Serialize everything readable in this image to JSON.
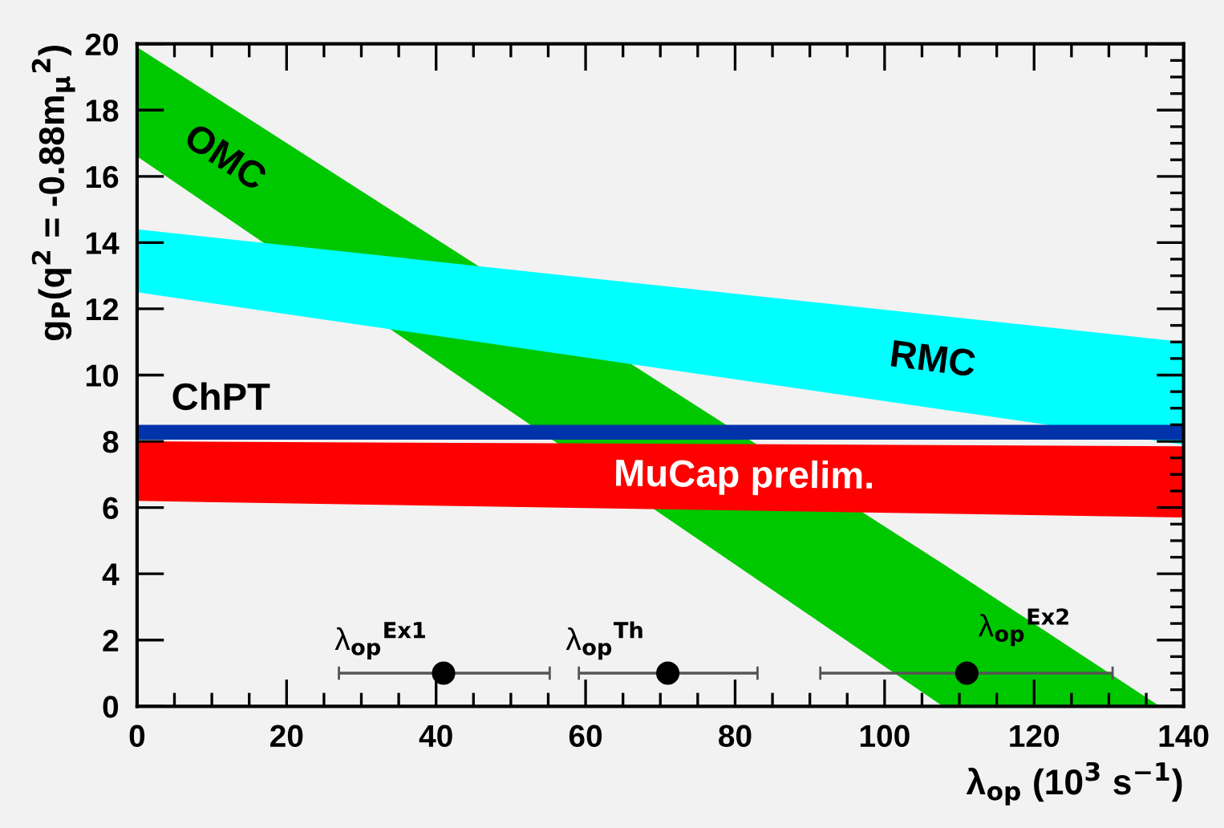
{
  "chart_data": {
    "type": "area",
    "xlabel": "λ$_{op}$ (10$^{3}$ s$^{−1}$)",
    "ylabel": "g$_{P}$(q$^{2}$ = -0.88m$_{μ}$$^{2}$)",
    "xlim": [
      0,
      140
    ],
    "xticks": [
      0,
      20,
      40,
      60,
      80,
      100,
      120,
      140
    ],
    "ylim": [
      0,
      20
    ],
    "yticks": [
      0,
      2,
      4,
      6,
      8,
      10,
      12,
      14,
      16,
      18,
      20
    ],
    "grid": false,
    "legend": false,
    "series": [
      {
        "type": "area",
        "color": "#00c800",
        "x": [
          0,
          107.8,
          136.8
        ],
        "values": [
          null,
          null,
          null
        ],
        "lower": [
          16.6,
          0,
          0
        ],
        "upper": [
          19.9,
          4.3,
          0
        ]
      },
      {
        "type": "area",
        "color": "#00ffff",
        "x": [
          0,
          140
        ],
        "values": [
          null,
          null
        ],
        "lower": [
          12.5,
          7.9
        ],
        "upper": [
          14.4,
          11.0
        ]
      },
      {
        "type": "area",
        "color": "#0033aa",
        "x": [
          0,
          140
        ],
        "values": [
          null,
          null
        ],
        "lower": [
          8.05,
          8.05
        ],
        "upper": [
          8.5,
          8.5
        ]
      },
      {
        "type": "area",
        "color": "#ff0000",
        "x": [
          0,
          140
        ],
        "values": [
          null,
          null
        ],
        "lower": [
          6.2,
          5.7
        ],
        "upper": [
          8.0,
          7.85
        ]
      },
      {
        "type": "scatter",
        "color": "#000000",
        "marker": "circle",
        "x": [
          41,
          71,
          111
        ],
        "values": [
          1,
          1,
          1
        ],
        "xerrors": [
          [
            27,
            55.2
          ],
          [
            59.1,
            83
          ],
          [
            91.4,
            130.5
          ]
        ]
      }
    ],
    "annotations": [
      "OMC",
      "RMC",
      "ChPT",
      "MuCap prelim.",
      {
        "text": "λ$_{op}$$^{Ex1}$",
        "x": 41,
        "y": 1
      },
      {
        "text": "λ$_{op}$$^{Th}$",
        "x": 71,
        "y": 1
      },
      {
        "text": "λ$_{op}$$^{Ex2}$",
        "x": 111,
        "y": 1
      }
    ]
  }
}
